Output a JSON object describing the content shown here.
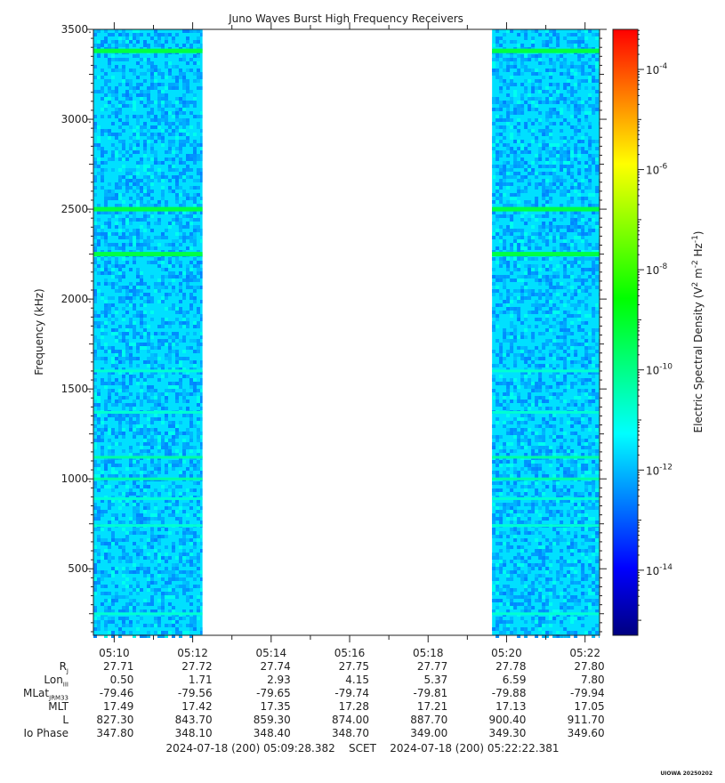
{
  "chart_data": {
    "type": "heatmap",
    "title": "Juno Waves Burst High Frequency Receivers",
    "ylabel": "Frequency (kHz)",
    "ylim": [
      130,
      3500
    ],
    "y_ticks": [
      "500.",
      "1000.",
      "1500.",
      "2000.",
      "2500.",
      "3000.",
      "3500."
    ],
    "y_tick_values": [
      500,
      1000,
      1500,
      2000,
      2500,
      3000,
      3500
    ],
    "x_ticks": [
      "05:10",
      "05:12",
      "05:14",
      "05:16",
      "05:18",
      "05:20",
      "05:22"
    ],
    "x_tick_minutes": [
      10,
      12,
      14,
      16,
      18,
      20,
      22
    ],
    "xlim_minutes": [
      9.47,
      22.37
    ],
    "data_intervals_minutes": [
      [
        9.47,
        12.25
      ],
      [
        19.63,
        22.37
      ]
    ],
    "emission_lines_khz": [
      {
        "freq": 3380,
        "strength": "strong"
      },
      {
        "freq": 2500,
        "strength": "strong"
      },
      {
        "freq": 2250,
        "strength": "strong"
      },
      {
        "freq": 1120,
        "strength": "medium"
      },
      {
        "freq": 1000,
        "strength": "medium"
      },
      {
        "freq": 1370,
        "strength": "weak"
      },
      {
        "freq": 1600,
        "strength": "weak"
      },
      {
        "freq": 890,
        "strength": "weak"
      },
      {
        "freq": 740,
        "strength": "weak"
      },
      {
        "freq": 250,
        "strength": "weak"
      }
    ],
    "background_level": "1e-12 to 1e-11",
    "colorbar": {
      "label": "Electric Spectral Density (V² m⁻² Hz⁻¹)",
      "label_base": "Electric Spectral Density (V",
      "label_sup1": "2",
      "label_mid": " m",
      "label_sup2": "-2",
      "label_mid2": " Hz",
      "label_sup3": "-1",
      "label_end": ")",
      "scale": "log",
      "range_exponents": [
        -15.3,
        -3.2
      ],
      "tick_exponents": [
        -14,
        -12,
        -10,
        -8,
        -6,
        -4
      ],
      "tick_base": "10",
      "tick_exps_text": [
        "-14",
        "-12",
        "-10",
        "-8",
        "-6",
        "-4"
      ],
      "colors": [
        "#000080",
        "#0000ff",
        "#0080ff",
        "#00ffff",
        "#00ff80",
        "#00ff00",
        "#80ff00",
        "#ffff00",
        "#ff8000",
        "#ff0000"
      ]
    }
  },
  "ephemeris": {
    "labels": [
      {
        "main": "R",
        "sub": "J"
      },
      {
        "main": "Lon",
        "sub": "III"
      },
      {
        "main": "MLat",
        "sub": "JRM33"
      },
      {
        "main": "MLT",
        "sub": ""
      },
      {
        "main": "L",
        "sub": ""
      },
      {
        "main": "Io Phase",
        "sub": ""
      }
    ],
    "rows": [
      [
        "27.71",
        "27.72",
        "27.74",
        "27.75",
        "27.77",
        "27.78",
        "27.80"
      ],
      [
        "0.50",
        "1.71",
        "2.93",
        "4.15",
        "5.37",
        "6.59",
        "7.80"
      ],
      [
        "-79.46",
        "-79.56",
        "-79.65",
        "-79.74",
        "-79.81",
        "-79.88",
        "-79.94"
      ],
      [
        "17.49",
        "17.42",
        "17.35",
        "17.28",
        "17.21",
        "17.13",
        "17.05"
      ],
      [
        "827.30",
        "843.70",
        "859.30",
        "874.00",
        "887.70",
        "900.40",
        "911.70"
      ],
      [
        "347.80",
        "348.10",
        "348.40",
        "348.70",
        "349.00",
        "349.30",
        "349.60"
      ]
    ]
  },
  "footer": {
    "start": "2024-07-18 (200) 05:09:28.382",
    "frame": "SCET",
    "end": "2024-07-18 (200) 05:22:22.381"
  },
  "stamp": "UIOWA 20250202"
}
